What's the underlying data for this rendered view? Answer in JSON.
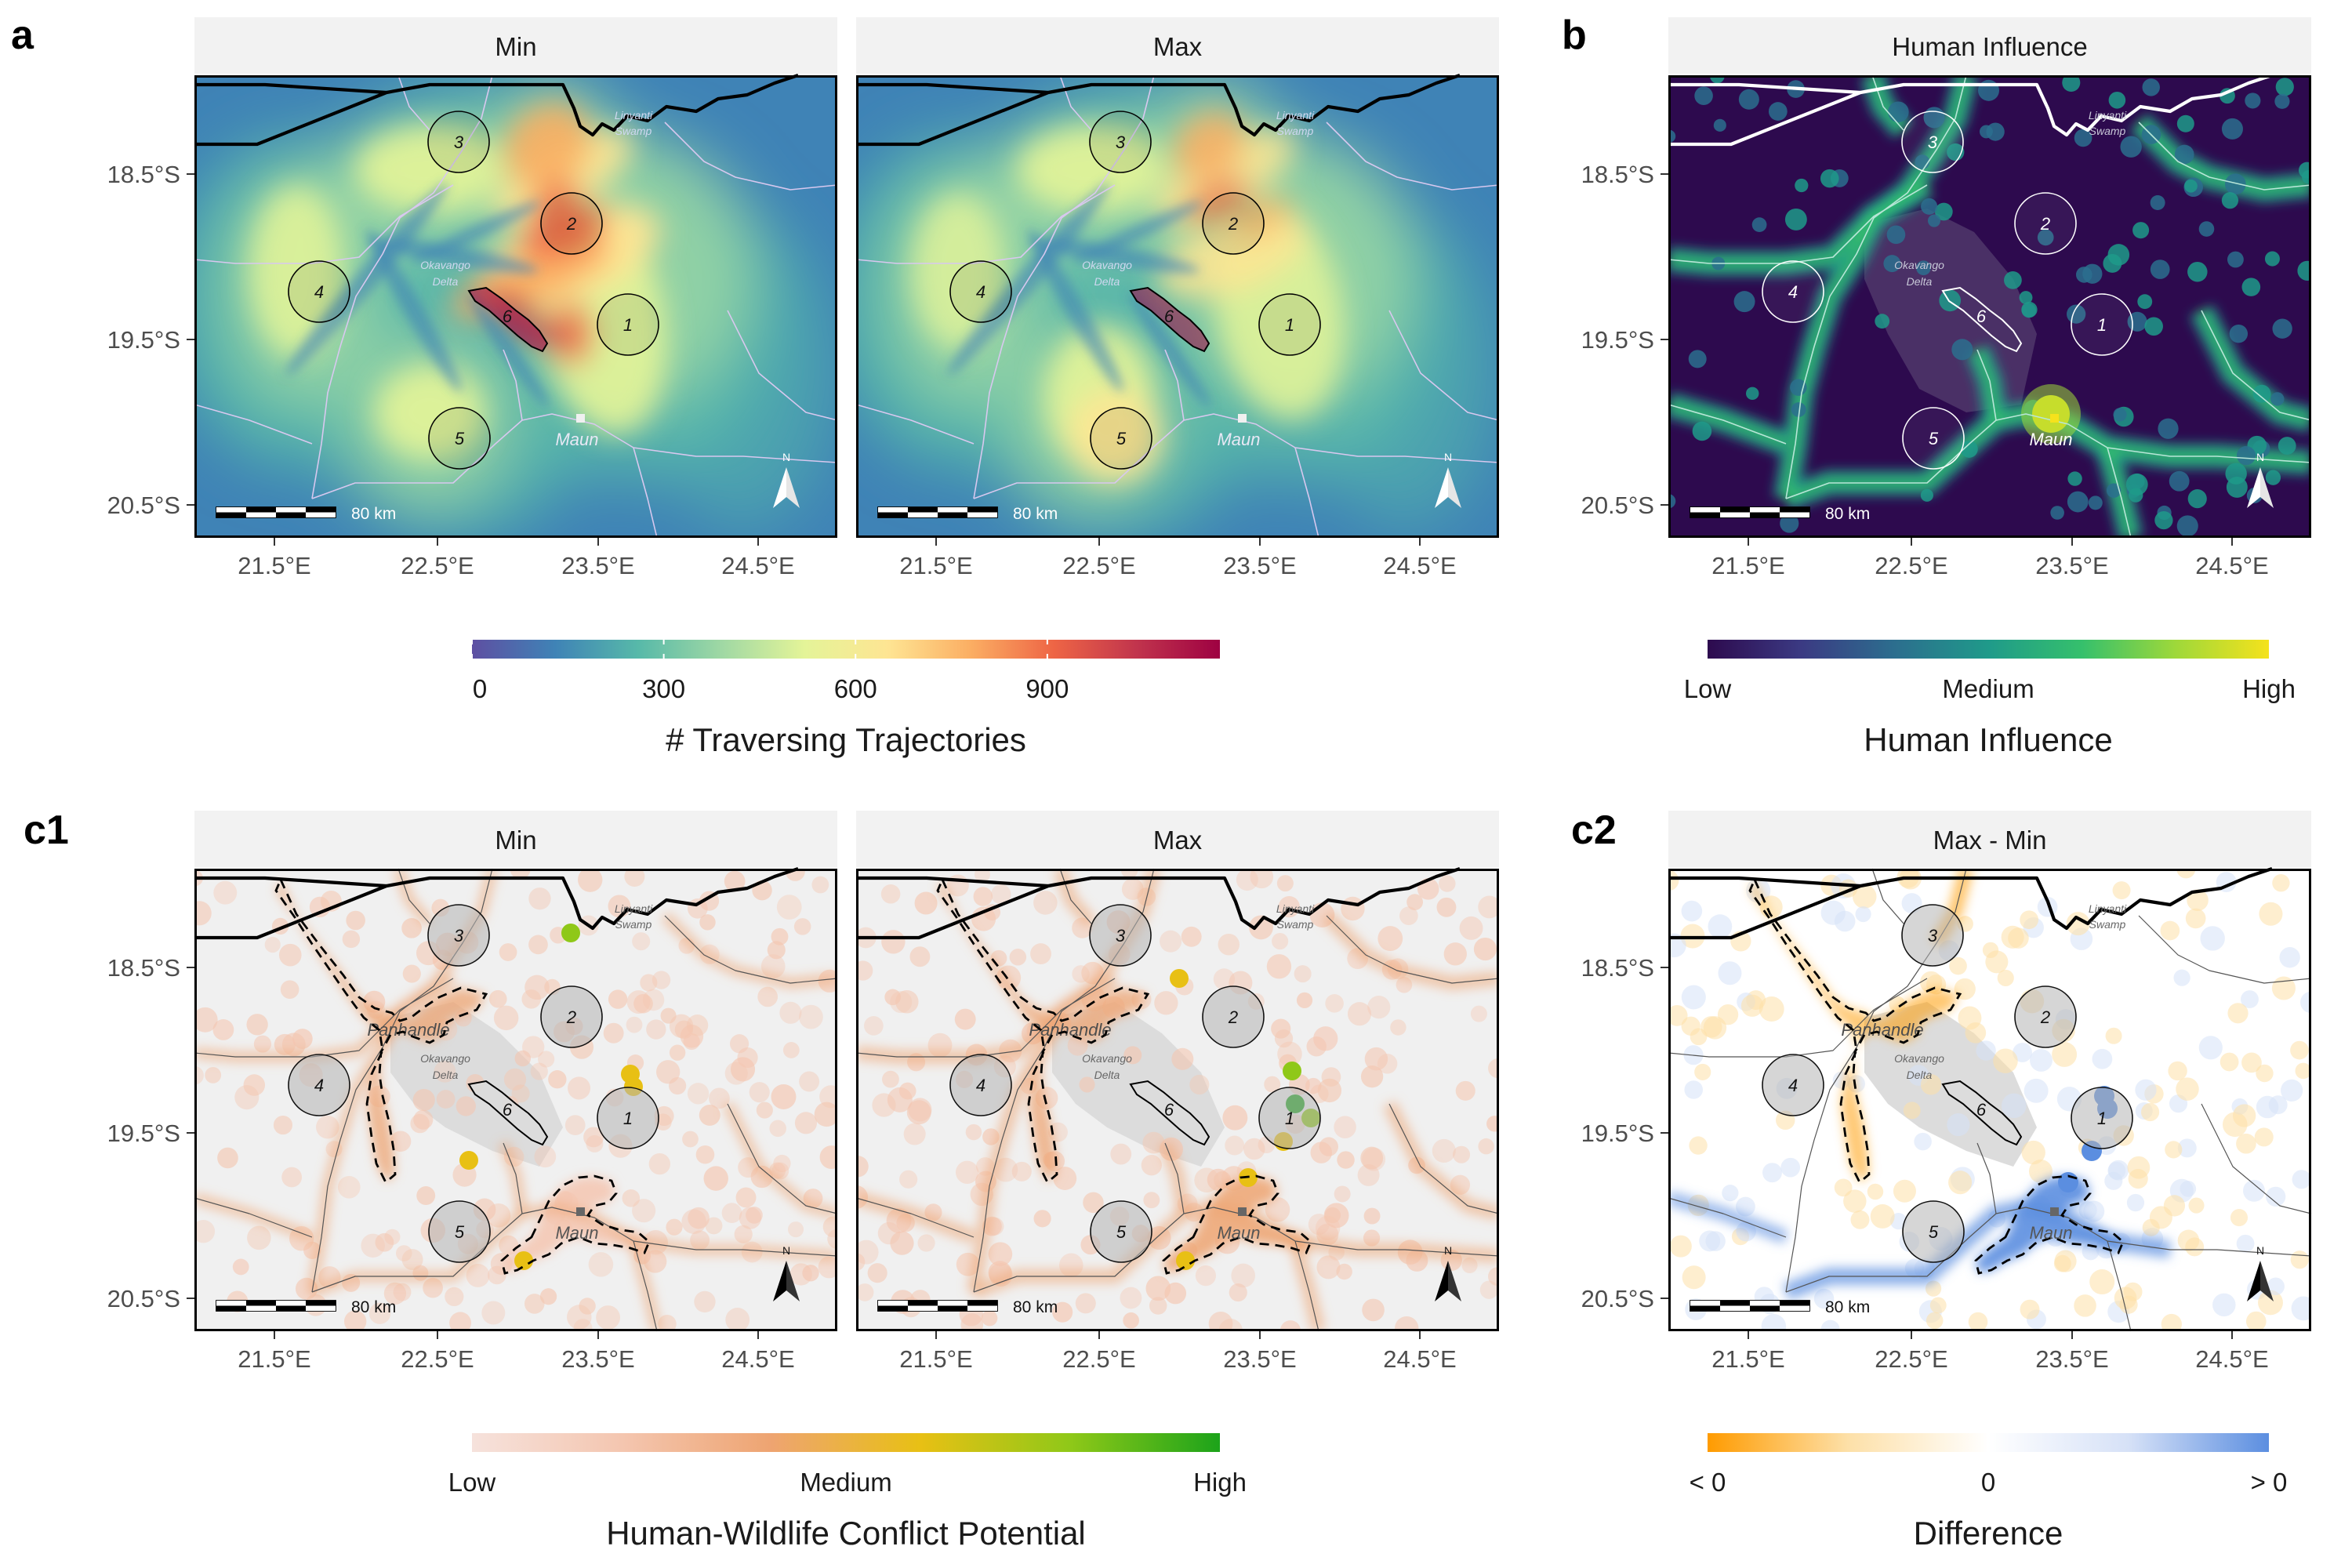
{
  "colors": {
    "strip_bg": "#f2f2f2",
    "spectral": [
      "#5e4fa2",
      "#3f83b6",
      "#57b9a9",
      "#9fd8a4",
      "#e4f498",
      "#fee593",
      "#fbae63",
      "#ee6545",
      "#c1344d",
      "#9e0142"
    ],
    "viridis": [
      "#2d0a4e",
      "#3b3a83",
      "#2c6e8e",
      "#1f9a8a",
      "#35c06c",
      "#9ed83a",
      "#f5e21c"
    ],
    "conflict": [
      "#f6e2dc",
      "#f4c6b0",
      "#eea471",
      "#e8c014",
      "#8fc818",
      "#1ca31a"
    ],
    "difference": [
      "#ff9b00",
      "#fde0a8",
      "#ffffff",
      "#d6e1f7",
      "#5b8ee0"
    ],
    "grey_region": "#dcdcdc",
    "panel_grey": "#f0f0f0"
  },
  "axis": {
    "x_ticks": [
      "21.5°E",
      "22.5°E",
      "23.5°E",
      "24.5°E"
    ],
    "y_ticks": [
      "18.5°S",
      "19.5°S",
      "20.5°S"
    ]
  },
  "map_labels": {
    "swamp_line1": "Linyanti",
    "swamp_line2": "Swamp",
    "delta_line1": "Okavango",
    "delta_line2": "Delta",
    "town": "Maun",
    "panhandle": "Panhandle",
    "scale": "80 km",
    "north": "N",
    "circles": [
      "1",
      "2",
      "3",
      "4",
      "5",
      "6"
    ]
  },
  "panels": {
    "a_label": "a",
    "b_label": "b",
    "c1_label": "c1",
    "c2_label": "c2",
    "a_min_title": "Min",
    "a_max_title": "Max",
    "b_title": "Human Influence",
    "c1_min_title": "Min",
    "c1_max_title": "Max",
    "c2_title": "Max - Min"
  },
  "legends": {
    "traj": {
      "title": "# Traversing Trajectories",
      "ticks": [
        "0",
        "300",
        "600",
        "900"
      ],
      "tick_values": [
        0,
        300,
        600,
        900
      ],
      "range": [
        0,
        1170
      ]
    },
    "hi": {
      "title": "Human Influence",
      "ticks": [
        "Low",
        "Medium",
        "High"
      ]
    },
    "hwc": {
      "title": "Human-Wildlife Conflict Potential",
      "ticks": [
        "Low",
        "Medium",
        "High"
      ]
    },
    "diff": {
      "title": "Difference",
      "ticks": [
        "< 0",
        "0",
        "> 0"
      ]
    }
  }
}
